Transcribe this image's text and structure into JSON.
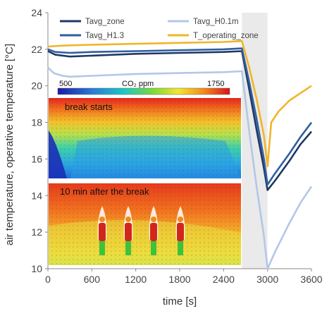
{
  "chart_data": {
    "type": "line",
    "title": "",
    "xlabel": "time [s]",
    "ylabel": "air temperature, operative temperature [°C]",
    "xlim": [
      0,
      3600
    ],
    "ylim": [
      10,
      24
    ],
    "x_ticks": [
      "0",
      "600",
      "1200",
      "1800",
      "2400",
      "3000",
      "3600"
    ],
    "y_ticks": [
      "10",
      "12",
      "14",
      "16",
      "18",
      "20",
      "22",
      "24"
    ],
    "grid": false,
    "legend_position": "top",
    "break_interval": [
      2650,
      3000
    ],
    "series": [
      {
        "name": "Tavg_zone",
        "color": "#1f3864",
        "points": [
          [
            0,
            21.9
          ],
          [
            100,
            21.7
          ],
          [
            300,
            21.6
          ],
          [
            600,
            21.65
          ],
          [
            1200,
            21.75
          ],
          [
            1800,
            21.8
          ],
          [
            2400,
            21.85
          ],
          [
            2650,
            21.9
          ],
          [
            2750,
            19.8
          ],
          [
            2850,
            17.6
          ],
          [
            2950,
            15.5
          ],
          [
            3000,
            14.3
          ],
          [
            3100,
            14.8
          ],
          [
            3300,
            15.9
          ],
          [
            3450,
            16.8
          ],
          [
            3600,
            17.5
          ]
        ]
      },
      {
        "name": "Tavg_H1.3",
        "color": "#2e5f9e",
        "points": [
          [
            0,
            22.0
          ],
          [
            100,
            21.85
          ],
          [
            300,
            21.8
          ],
          [
            600,
            21.85
          ],
          [
            1200,
            21.9
          ],
          [
            1800,
            21.95
          ],
          [
            2400,
            22.0
          ],
          [
            2650,
            22.05
          ],
          [
            2750,
            20.2
          ],
          [
            2850,
            18.2
          ],
          [
            2950,
            16.0
          ],
          [
            3000,
            14.6
          ],
          [
            3100,
            15.2
          ],
          [
            3300,
            16.3
          ],
          [
            3450,
            17.2
          ],
          [
            3600,
            18.0
          ]
        ]
      },
      {
        "name": "Tavg_H0.1m",
        "color": "#b4c7e7",
        "points": [
          [
            0,
            21.0
          ],
          [
            80,
            20.7
          ],
          [
            200,
            20.55
          ],
          [
            300,
            20.5
          ],
          [
            600,
            20.55
          ],
          [
            1200,
            20.65
          ],
          [
            1800,
            20.7
          ],
          [
            2400,
            20.75
          ],
          [
            2650,
            20.8
          ],
          [
            2750,
            17.5
          ],
          [
            2850,
            14.5
          ],
          [
            2950,
            11.8
          ],
          [
            3000,
            10.0
          ],
          [
            3100,
            10.9
          ],
          [
            3300,
            12.5
          ],
          [
            3450,
            13.6
          ],
          [
            3600,
            14.5
          ]
        ]
      },
      {
        "name": "T_operating_zone",
        "color": "#f0b52a",
        "points": [
          [
            0,
            22.15
          ],
          [
            200,
            22.2
          ],
          [
            600,
            22.25
          ],
          [
            1200,
            22.3
          ],
          [
            1800,
            22.35
          ],
          [
            2400,
            22.4
          ],
          [
            2650,
            22.45
          ],
          [
            2750,
            21.0
          ],
          [
            2850,
            19.3
          ],
          [
            2950,
            17.3
          ],
          [
            3000,
            15.6
          ],
          [
            3050,
            18.0
          ],
          [
            3150,
            18.6
          ],
          [
            3300,
            19.2
          ],
          [
            3450,
            19.6
          ],
          [
            3600,
            20.0
          ]
        ]
      }
    ],
    "colorbar": {
      "label": "CO₂ ppm",
      "min": "500",
      "max": "1750"
    },
    "insets": [
      {
        "label": "break starts"
      },
      {
        "label": "10 min after the break"
      }
    ]
  }
}
